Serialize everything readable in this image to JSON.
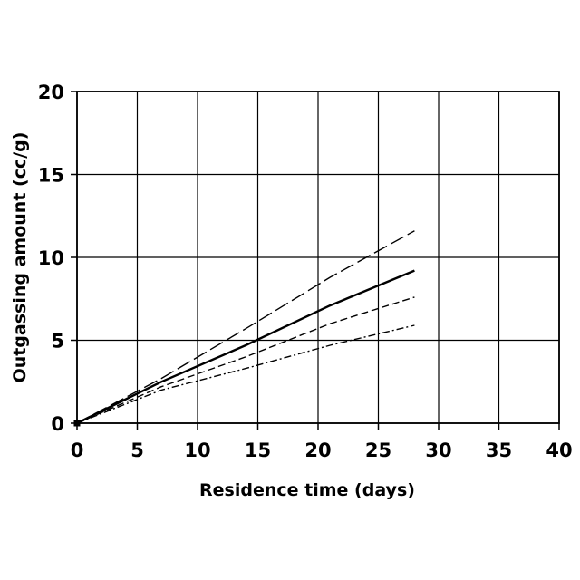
{
  "chart_data": {
    "type": "line",
    "title": "",
    "xlabel": "Residence time (days)",
    "ylabel": "Outgassing amount (cc/g)",
    "xlim": [
      0,
      40
    ],
    "ylim": [
      0,
      20
    ],
    "xticks": [
      "0",
      "5",
      "10",
      "15",
      "20",
      "25",
      "30",
      "35",
      "40"
    ],
    "yticks": [
      "0",
      "5",
      "10",
      "15",
      "20"
    ],
    "grid": true,
    "legend": "none",
    "x": [
      0,
      7,
      14,
      21,
      28
    ],
    "series": [
      {
        "values": [
          0,
          2.7,
          5.7,
          8.8,
          11.6
        ],
        "color": "#000000",
        "style": "long-dash"
      },
      {
        "values": [
          0,
          2.5,
          4.7,
          7.1,
          9.2
        ],
        "color": "#000000",
        "style": "solid"
      },
      {
        "values": [
          0,
          2.2,
          4.0,
          6.0,
          7.6
        ],
        "color": "#000000",
        "style": "dashed"
      },
      {
        "values": [
          0,
          2.0,
          3.3,
          4.7,
          5.9
        ],
        "color": "#000000",
        "style": "dash-dot"
      }
    ]
  }
}
